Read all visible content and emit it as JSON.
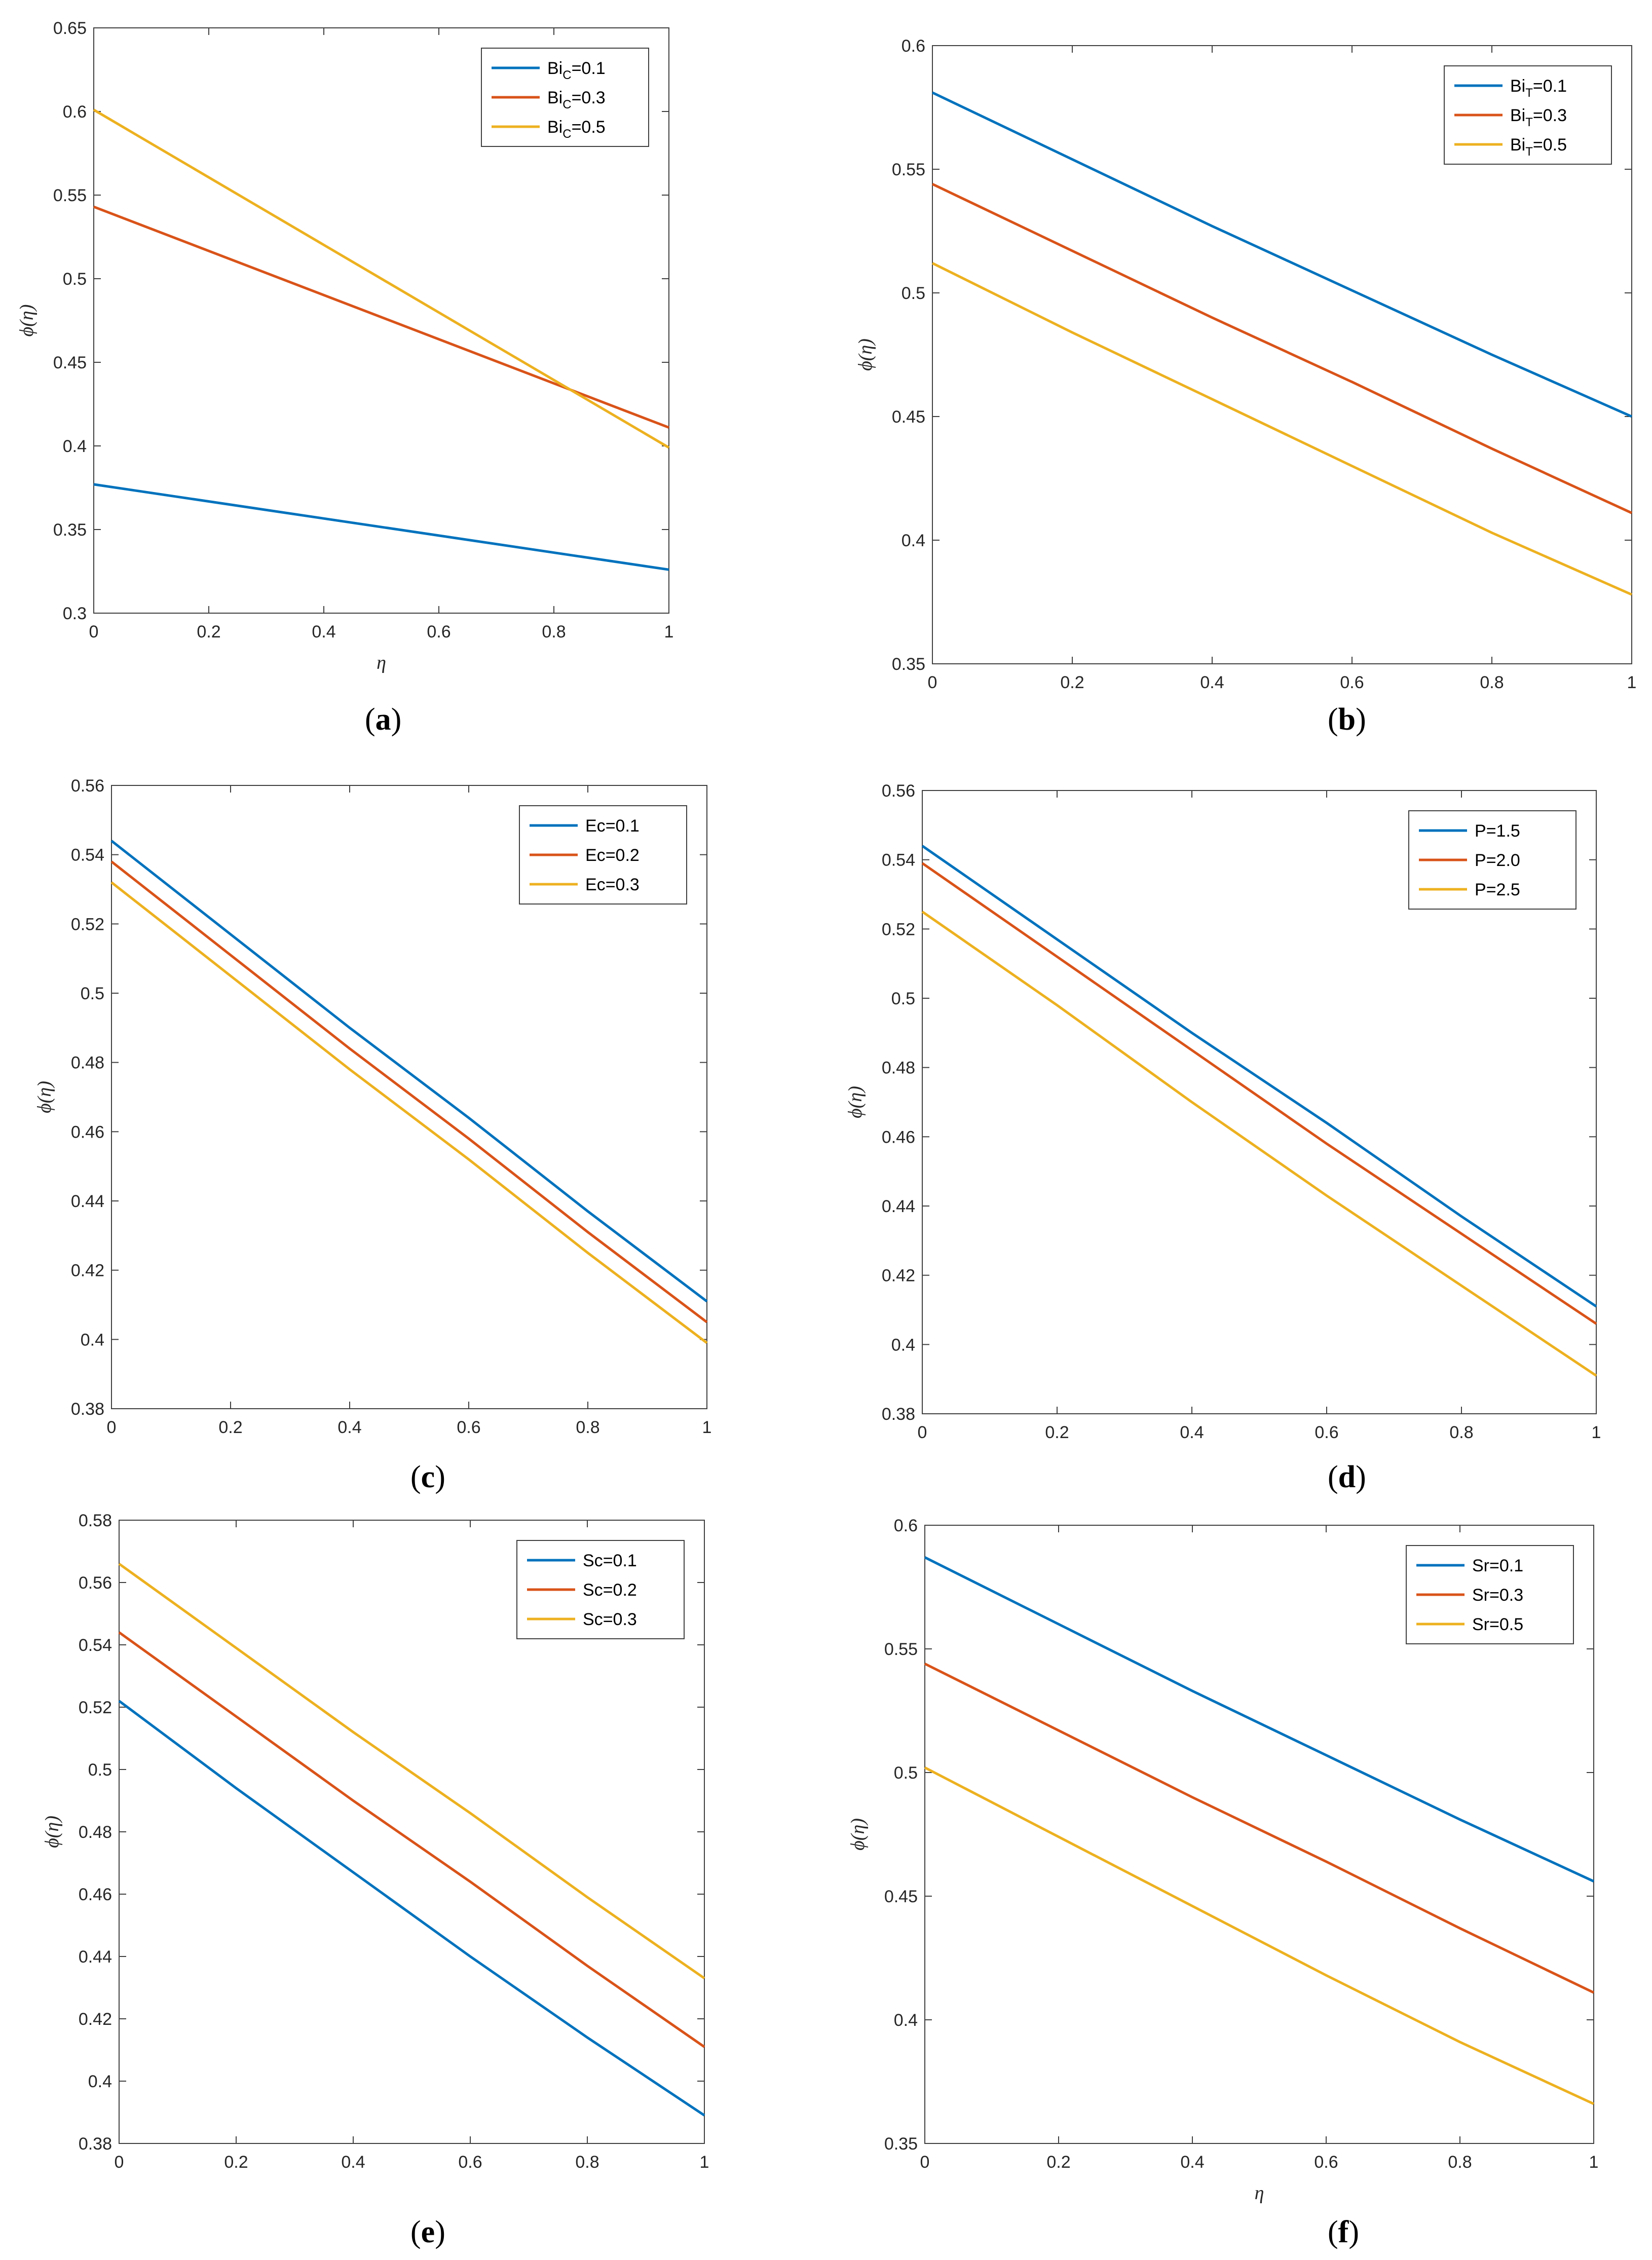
{
  "colors": {
    "s1": "#0072BD",
    "s2": "#D95319",
    "s3": "#EDB120",
    "axis": "#404040",
    "grid": "#000000"
  },
  "panels": [
    {
      "caption_letter": "a",
      "chart_data": {
        "type": "line",
        "title": "",
        "xlabel": "η",
        "ylabel": "ϕ(η)",
        "xlim": [
          0,
          1
        ],
        "ylim": [
          0.3,
          0.65
        ],
        "xticks": [
          "0",
          "0.2",
          "0.4",
          "0.6",
          "0.8",
          "1"
        ],
        "yticks": [
          "0.3",
          "0.35",
          "0.4",
          "0.45",
          "0.5",
          "0.55",
          "0.6",
          "0.65"
        ],
        "legend_position": "top-right",
        "x": [
          0,
          1
        ],
        "series": [
          {
            "name": "Bi_C=0.1",
            "base": "Bi",
            "sub": "C",
            "value_text": "=0.1",
            "values": [
              0.377,
              0.326
            ]
          },
          {
            "name": "Bi_C=0.3",
            "base": "Bi",
            "sub": "C",
            "value_text": "=0.3",
            "values": [
              0.543,
              0.411
            ]
          },
          {
            "name": "Bi_C=0.5",
            "base": "Bi",
            "sub": "C",
            "value_text": "=0.5",
            "values": [
              0.601,
              0.399
            ]
          }
        ]
      }
    },
    {
      "caption_letter": "b",
      "chart_data": {
        "type": "line",
        "title": "",
        "xlabel": "",
        "ylabel": "ϕ(η)",
        "xlim": [
          0,
          1
        ],
        "ylim": [
          0.35,
          0.6
        ],
        "xticks": [
          "0",
          "0.2",
          "0.4",
          "0.6",
          "0.8",
          "1"
        ],
        "yticks": [
          "0.35",
          "0.4",
          "0.45",
          "0.5",
          "0.55",
          "0.6"
        ],
        "legend_position": "top-right",
        "x": [
          0,
          0.2,
          0.4,
          0.6,
          0.8,
          1
        ],
        "series": [
          {
            "name": "Bi_T=0.1",
            "base": "Bi",
            "sub": "T",
            "value_text": "=0.1",
            "values": [
              0.581,
              0.554,
              0.527,
              0.501,
              0.475,
              0.45
            ]
          },
          {
            "name": "Bi_T=0.3",
            "base": "Bi",
            "sub": "T",
            "value_text": "=0.3",
            "values": [
              0.544,
              0.517,
              0.49,
              0.464,
              0.437,
              0.411
            ]
          },
          {
            "name": "Bi_T=0.5",
            "base": "Bi",
            "sub": "T",
            "value_text": "=0.5",
            "values": [
              0.512,
              0.484,
              0.457,
              0.43,
              0.403,
              0.378
            ]
          }
        ]
      }
    },
    {
      "caption_letter": "c",
      "chart_data": {
        "type": "line",
        "title": "",
        "xlabel": "",
        "ylabel": "ϕ(η)",
        "xlim": [
          0,
          1
        ],
        "ylim": [
          0.38,
          0.56
        ],
        "xticks": [
          "0",
          "0.2",
          "0.4",
          "0.6",
          "0.8",
          "1"
        ],
        "yticks": [
          "0.38",
          "0.4",
          "0.42",
          "0.44",
          "0.46",
          "0.48",
          "0.5",
          "0.52",
          "0.54",
          "0.56"
        ],
        "legend_position": "top-right",
        "x": [
          0,
          0.2,
          0.4,
          0.6,
          0.8,
          1
        ],
        "series": [
          {
            "name": "Ec=0.1",
            "base": "Ec",
            "sub": "",
            "value_text": "=0.1",
            "values": [
              0.544,
              0.517,
              0.49,
              0.464,
              0.437,
              0.411
            ]
          },
          {
            "name": "Ec=0.2",
            "base": "Ec",
            "sub": "",
            "value_text": "=0.2",
            "values": [
              0.538,
              0.511,
              0.484,
              0.458,
              0.431,
              0.405
            ]
          },
          {
            "name": "Ec=0.3",
            "base": "Ec",
            "sub": "",
            "value_text": "=0.3",
            "values": [
              0.532,
              0.505,
              0.478,
              0.452,
              0.425,
              0.399
            ]
          }
        ]
      }
    },
    {
      "caption_letter": "d",
      "chart_data": {
        "type": "line",
        "title": "",
        "xlabel": "",
        "ylabel": "ϕ(η)",
        "xlim": [
          0,
          1
        ],
        "ylim": [
          0.38,
          0.56
        ],
        "xticks": [
          "0",
          "0.2",
          "0.4",
          "0.6",
          "0.8",
          "1"
        ],
        "yticks": [
          "0.38",
          "0.4",
          "0.42",
          "0.44",
          "0.46",
          "0.48",
          "0.5",
          "0.52",
          "0.54",
          "0.56"
        ],
        "legend_position": "top-right",
        "x": [
          0,
          0.2,
          0.4,
          0.6,
          0.8,
          1
        ],
        "series": [
          {
            "name": "P=1.5",
            "base": "P",
            "sub": "",
            "value_text": "=1.5",
            "values": [
              0.544,
              0.517,
              0.49,
              0.464,
              0.437,
              0.411
            ]
          },
          {
            "name": "P=2.0",
            "base": "P",
            "sub": "",
            "value_text": "=2.0",
            "values": [
              0.539,
              0.512,
              0.485,
              0.458,
              0.432,
              0.406
            ]
          },
          {
            "name": "P=2.5",
            "base": "P",
            "sub": "",
            "value_text": "=2.5",
            "values": [
              0.525,
              0.498,
              0.47,
              0.443,
              0.417,
              0.391
            ]
          }
        ]
      }
    },
    {
      "caption_letter": "e",
      "chart_data": {
        "type": "line",
        "title": "",
        "xlabel": "",
        "ylabel": "ϕ(η)",
        "xlim": [
          0,
          1
        ],
        "ylim": [
          0.38,
          0.58
        ],
        "xticks": [
          "0",
          "0.2",
          "0.4",
          "0.6",
          "0.8",
          "1"
        ],
        "yticks": [
          "0.38",
          "0.4",
          "0.42",
          "0.44",
          "0.46",
          "0.48",
          "0.5",
          "0.52",
          "0.54",
          "0.56",
          "0.58"
        ],
        "legend_position": "top-right",
        "x": [
          0,
          0.2,
          0.4,
          0.6,
          0.8,
          1
        ],
        "series": [
          {
            "name": "Sc=0.1",
            "base": "Sc",
            "sub": "",
            "value_text": "=0.1",
            "values": [
              0.522,
              0.494,
              0.467,
              0.44,
              0.414,
              0.389
            ]
          },
          {
            "name": "Sc=0.2",
            "base": "Sc",
            "sub": "",
            "value_text": "=0.2",
            "values": [
              0.544,
              0.517,
              0.49,
              0.464,
              0.437,
              0.411
            ]
          },
          {
            "name": "Sc=0.3",
            "base": "Sc",
            "sub": "",
            "value_text": "=0.3",
            "values": [
              0.566,
              0.539,
              0.512,
              0.486,
              0.459,
              0.433
            ]
          }
        ]
      }
    },
    {
      "caption_letter": "f",
      "chart_data": {
        "type": "line",
        "title": "",
        "xlabel": "η",
        "ylabel": "ϕ(η)",
        "xlim": [
          0,
          1
        ],
        "ylim": [
          0.35,
          0.6
        ],
        "xticks": [
          "0",
          "0.2",
          "0.4",
          "0.6",
          "0.8",
          "1"
        ],
        "yticks": [
          "0.35",
          "0.4",
          "0.45",
          "0.5",
          "0.55",
          "0.6"
        ],
        "legend_position": "top-right",
        "x": [
          0,
          0.2,
          0.4,
          0.6,
          0.8,
          1
        ],
        "series": [
          {
            "name": "Sr=0.1",
            "base": "Sr",
            "sub": "",
            "value_text": "=0.1",
            "values": [
              0.587,
              0.56,
              0.533,
              0.507,
              0.481,
              0.456
            ]
          },
          {
            "name": "Sr=0.3",
            "base": "Sr",
            "sub": "",
            "value_text": "=0.3",
            "values": [
              0.544,
              0.517,
              0.49,
              0.464,
              0.437,
              0.411
            ]
          },
          {
            "name": "Sr=0.5",
            "base": "Sr",
            "sub": "",
            "value_text": "=0.5",
            "values": [
              0.502,
              0.474,
              0.446,
              0.418,
              0.391,
              0.366
            ]
          }
        ]
      }
    }
  ]
}
